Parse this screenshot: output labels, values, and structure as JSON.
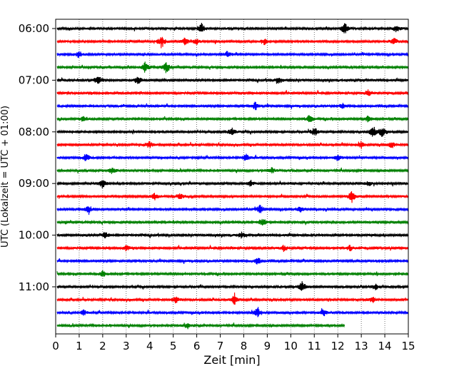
{
  "chart_data": {
    "type": "line",
    "subtype": "helicorder",
    "xlabel": "Zeit  [min]",
    "ylabel": "UTC (Lokalzeit = UTC + 01:00)",
    "xlim": [
      0,
      15
    ],
    "x_ticks": [
      "0",
      "1",
      "2",
      "3",
      "4",
      "5",
      "6",
      "7",
      "8",
      "9",
      "10",
      "11",
      "12",
      "13",
      "14",
      "15"
    ],
    "y_ticks": [
      {
        "label": "06:00",
        "row": 0
      },
      {
        "label": "07:00",
        "row": 4
      },
      {
        "label": "08:00",
        "row": 8
      },
      {
        "label": "09:00",
        "row": 12
      },
      {
        "label": "10:00",
        "row": 16
      },
      {
        "label": "11:00",
        "row": 20
      }
    ],
    "vertical_grid": true,
    "grid_style": "dotted",
    "row_minutes": 15,
    "colors": [
      "#000000",
      "#ff0000",
      "#0000ff",
      "#008000"
    ],
    "traces": [
      {
        "start": "06:00",
        "color": "#000000",
        "end_min": 15,
        "events": [
          [
            6.2,
            0.9
          ],
          [
            12.3,
            1.0
          ],
          [
            14.5,
            0.6
          ]
        ]
      },
      {
        "start": "06:15",
        "color": "#ff0000",
        "end_min": 15,
        "events": [
          [
            4.5,
            0.9
          ],
          [
            5.5,
            0.6
          ],
          [
            6.0,
            0.5
          ],
          [
            8.9,
            0.6
          ],
          [
            14.4,
            0.6
          ]
        ]
      },
      {
        "start": "06:30",
        "color": "#0000ff",
        "end_min": 15,
        "events": [
          [
            1.0,
            0.7
          ],
          [
            7.3,
            0.5
          ]
        ]
      },
      {
        "start": "06:45",
        "color": "#008000",
        "end_min": 15,
        "events": [
          [
            3.8,
            0.9
          ],
          [
            4.7,
            1.0
          ]
        ]
      },
      {
        "start": "07:00",
        "color": "#000000",
        "end_min": 15,
        "events": [
          [
            1.8,
            0.9
          ],
          [
            3.5,
            0.8
          ],
          [
            9.5,
            0.6
          ]
        ]
      },
      {
        "start": "07:15",
        "color": "#ff0000",
        "end_min": 15,
        "events": [
          [
            13.3,
            0.6
          ]
        ]
      },
      {
        "start": "07:30",
        "color": "#0000ff",
        "end_min": 15,
        "events": [
          [
            8.5,
            0.7
          ],
          [
            12.2,
            0.5
          ]
        ]
      },
      {
        "start": "07:45",
        "color": "#008000",
        "end_min": 15,
        "events": [
          [
            1.2,
            0.5
          ],
          [
            10.8,
            0.7
          ],
          [
            13.3,
            0.6
          ]
        ]
      },
      {
        "start": "08:00",
        "color": "#000000",
        "end_min": 15,
        "events": [
          [
            7.5,
            0.7
          ],
          [
            11.0,
            0.8
          ],
          [
            13.5,
            1.0
          ],
          [
            13.9,
            0.9
          ]
        ]
      },
      {
        "start": "08:15",
        "color": "#ff0000",
        "end_min": 15,
        "events": [
          [
            4.0,
            0.6
          ],
          [
            13.0,
            0.6
          ],
          [
            14.3,
            0.6
          ]
        ]
      },
      {
        "start": "08:30",
        "color": "#0000ff",
        "end_min": 15,
        "events": [
          [
            1.3,
            0.6
          ],
          [
            8.1,
            0.6
          ],
          [
            12.0,
            0.5
          ]
        ]
      },
      {
        "start": "08:45",
        "color": "#008000",
        "end_min": 15,
        "events": [
          [
            2.4,
            0.6
          ],
          [
            9.2,
            0.5
          ]
        ]
      },
      {
        "start": "09:00",
        "color": "#000000",
        "end_min": 15,
        "events": [
          [
            2.0,
            0.8
          ],
          [
            8.3,
            0.5
          ],
          [
            13.3,
            0.5
          ]
        ]
      },
      {
        "start": "09:15",
        "color": "#ff0000",
        "end_min": 15,
        "events": [
          [
            4.2,
            0.6
          ],
          [
            5.3,
            0.5
          ],
          [
            12.6,
            1.0
          ]
        ]
      },
      {
        "start": "09:30",
        "color": "#0000ff",
        "end_min": 15,
        "events": [
          [
            1.4,
            0.7
          ],
          [
            8.7,
            0.8
          ],
          [
            10.4,
            0.5
          ]
        ]
      },
      {
        "start": "09:45",
        "color": "#008000",
        "end_min": 15,
        "events": [
          [
            8.8,
            0.6
          ]
        ]
      },
      {
        "start": "10:00",
        "color": "#000000",
        "end_min": 15,
        "events": [
          [
            2.1,
            0.6
          ],
          [
            7.9,
            0.5
          ]
        ]
      },
      {
        "start": "10:15",
        "color": "#ff0000",
        "end_min": 15,
        "events": [
          [
            3.0,
            0.5
          ],
          [
            9.7,
            0.5
          ],
          [
            12.5,
            0.5
          ]
        ]
      },
      {
        "start": "10:30",
        "color": "#0000ff",
        "end_min": 15,
        "events": [
          [
            8.6,
            0.6
          ]
        ]
      },
      {
        "start": "10:45",
        "color": "#008000",
        "end_min": 15,
        "events": [
          [
            2.0,
            0.5
          ]
        ]
      },
      {
        "start": "11:00",
        "color": "#000000",
        "end_min": 15,
        "events": [
          [
            10.5,
            1.0
          ],
          [
            13.6,
            0.5
          ]
        ]
      },
      {
        "start": "11:15",
        "color": "#ff0000",
        "end_min": 15,
        "events": [
          [
            5.1,
            0.6
          ],
          [
            7.6,
            0.9
          ],
          [
            13.5,
            0.5
          ]
        ]
      },
      {
        "start": "11:30",
        "color": "#0000ff",
        "end_min": 15,
        "events": [
          [
            1.2,
            0.5
          ],
          [
            8.6,
            0.9
          ],
          [
            11.4,
            0.6
          ]
        ]
      },
      {
        "start": "11:45",
        "color": "#008000",
        "end_min": 12.3,
        "events": [
          [
            5.6,
            0.5
          ]
        ]
      }
    ]
  }
}
